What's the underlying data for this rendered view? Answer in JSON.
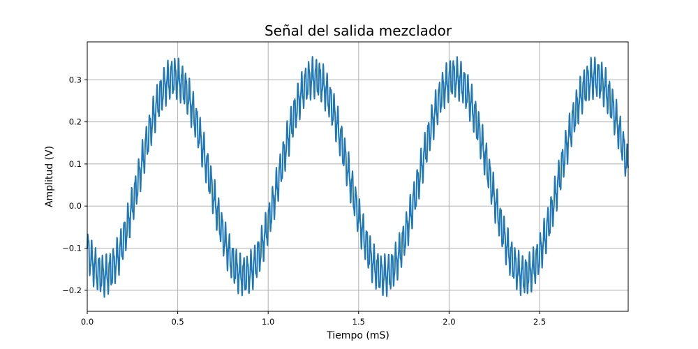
{
  "chart_data": {
    "type": "line",
    "title": "Señal del salida mezclador",
    "xlabel": "Tiempo (mS)",
    "ylabel": "Amplitud (V)",
    "xlim": [
      0,
      2.99
    ],
    "ylim": [
      -0.25,
      0.39
    ],
    "x_ticks": [
      0.0,
      0.5,
      1.0,
      1.5,
      2.0,
      2.5
    ],
    "x_tick_labels": [
      "0.0",
      "0.5",
      "1.0",
      "1.5",
      "2.0",
      "2.5"
    ],
    "y_ticks": [
      -0.2,
      -0.1,
      0.0,
      0.1,
      0.2,
      0.3
    ],
    "y_tick_labels": [
      "−0.2",
      "−0.1",
      "0.0",
      "0.1",
      "0.2",
      "0.3"
    ],
    "grid": true,
    "series": [
      {
        "color": "#1f77b4",
        "low_frequency_sine": {
          "offset": 0.07,
          "amplitude": 0.235,
          "period": 0.775,
          "peak_at": 0.48
        },
        "high_frequency_ripple": {
          "amplitude": 0.04,
          "period": 0.02
        },
        "x_range": [
          0,
          2.99
        ]
      }
    ]
  }
}
